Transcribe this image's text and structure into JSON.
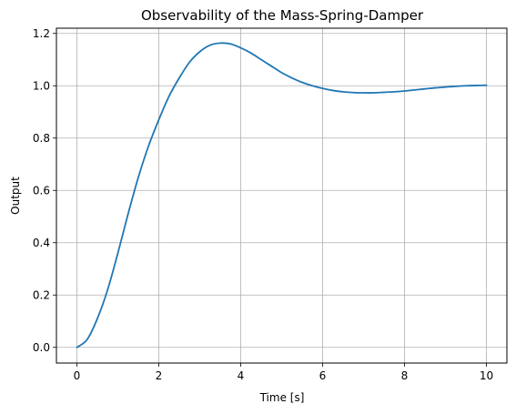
{
  "chart_data": {
    "type": "line",
    "title": "Observability of the Mass-Spring-Damper",
    "xlabel": "Time [s]",
    "ylabel": "Output",
    "xlim": [
      -0.5,
      10.5
    ],
    "ylim": [
      -0.06,
      1.22
    ],
    "xticks": [
      0,
      2,
      4,
      6,
      8,
      10
    ],
    "xtick_labels": [
      "0",
      "2",
      "4",
      "6",
      "8",
      "10"
    ],
    "yticks": [
      0.0,
      0.2,
      0.4,
      0.6,
      0.8,
      1.0,
      1.2
    ],
    "ytick_labels": [
      "0.0",
      "0.2",
      "0.4",
      "0.6",
      "0.8",
      "1.0",
      "1.2"
    ],
    "grid": true,
    "series": [
      {
        "color": "#1f77b4",
        "x": [
          0,
          0.25,
          0.5,
          0.75,
          1.0,
          1.25,
          1.5,
          1.75,
          2.0,
          2.25,
          2.5,
          2.75,
          3.0,
          3.25,
          3.5,
          3.75,
          4.0,
          4.25,
          4.5,
          4.75,
          5.0,
          5.25,
          5.5,
          5.75,
          6.0,
          6.25,
          6.5,
          6.75,
          7.0,
          7.25,
          7.5,
          7.75,
          8.0,
          8.25,
          8.5,
          8.75,
          9.0,
          9.25,
          9.5,
          9.75,
          10.0
        ],
        "y": [
          0.0,
          0.03,
          0.11,
          0.22,
          0.36,
          0.51,
          0.65,
          0.77,
          0.87,
          0.96,
          1.03,
          1.09,
          1.13,
          1.155,
          1.163,
          1.16,
          1.145,
          1.125,
          1.1,
          1.075,
          1.05,
          1.03,
          1.013,
          1.0,
          0.99,
          0.982,
          0.977,
          0.974,
          0.973,
          0.973,
          0.975,
          0.977,
          0.98,
          0.984,
          0.988,
          0.992,
          0.995,
          0.998,
          1.0,
          1.001,
          1.002
        ]
      }
    ]
  }
}
